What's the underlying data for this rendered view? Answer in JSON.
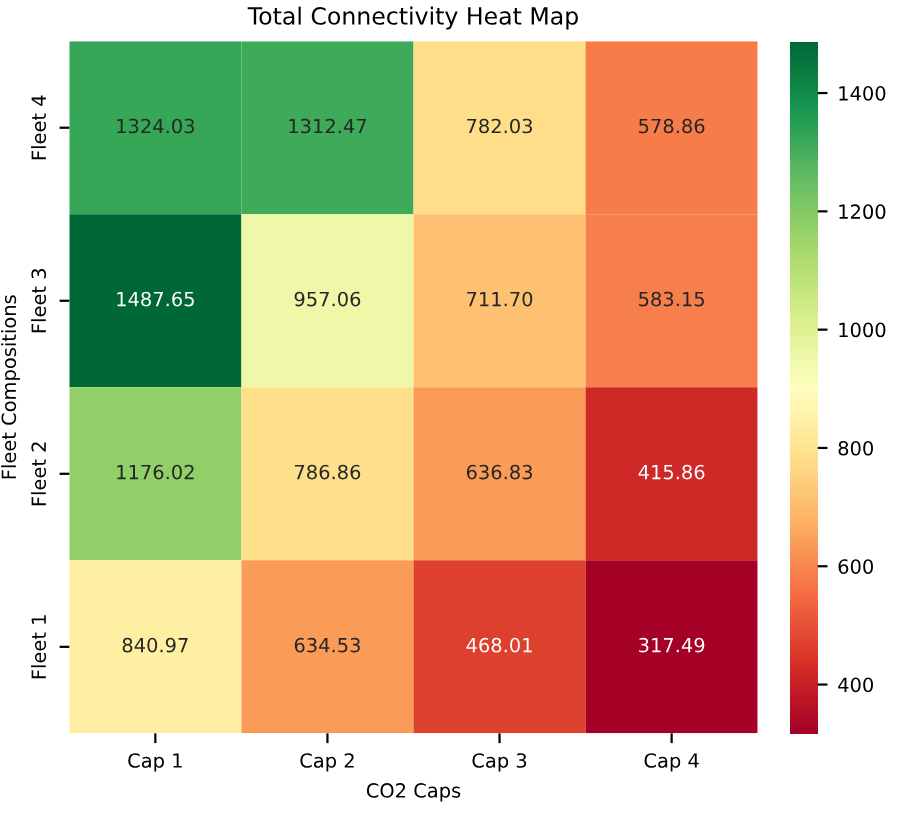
{
  "chart_data": {
    "type": "heatmap",
    "title": "Total Connectivity Heat Map",
    "xlabel": "CO2 Caps",
    "ylabel": "Fleet Compositions",
    "categories": [
      "Cap 1",
      "Cap 2",
      "Cap 3",
      "Cap 4"
    ],
    "y_categories": [
      "Fleet 4",
      "Fleet 3",
      "Fleet 2",
      "Fleet 1"
    ],
    "cells": [
      [
        1324.03,
        1312.47,
        782.03,
        578.86
      ],
      [
        1487.65,
        957.06,
        711.7,
        583.15
      ],
      [
        1176.02,
        786.86,
        636.83,
        415.86
      ],
      [
        840.97,
        634.53,
        468.01,
        317.49
      ]
    ],
    "cell_labels": [
      [
        "1324.03",
        "1312.47",
        "782.03",
        "578.86"
      ],
      [
        "1487.65",
        "957.06",
        "711.70",
        "583.15"
      ],
      [
        "1176.02",
        "786.86",
        "636.83",
        "415.86"
      ],
      [
        "840.97",
        "634.53",
        "468.01",
        "317.49"
      ]
    ],
    "clim": [
      317.49,
      1487.65
    ],
    "cticks": [
      400,
      600,
      800,
      1000,
      1200,
      1400
    ]
  }
}
